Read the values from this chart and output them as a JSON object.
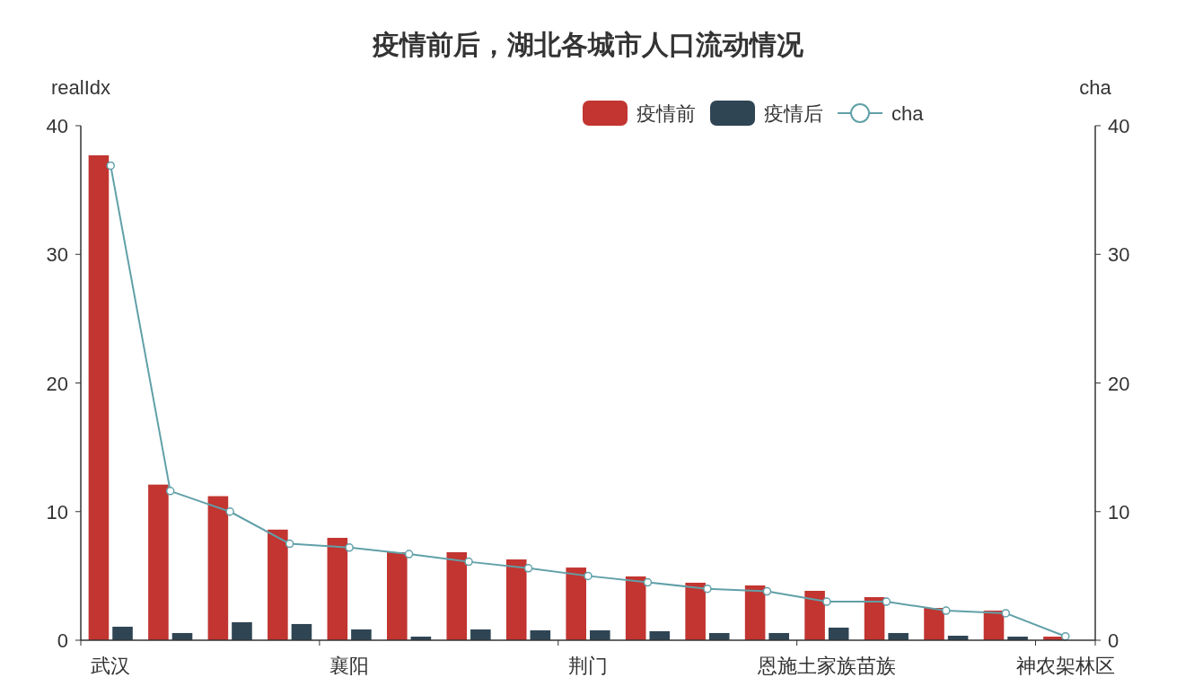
{
  "chart_data": {
    "type": "bar",
    "title": "疫情前后，湖北各城市人口流动情况",
    "ylabel": "realIdx",
    "y2label": "cha",
    "categories": [
      "武汉",
      null,
      null,
      null,
      "襄阳",
      null,
      null,
      null,
      "荆门",
      null,
      null,
      null,
      "恩施土家族苗族",
      null,
      null,
      null,
      "神农架林区"
    ],
    "series": [
      {
        "name": "疫情前",
        "color": "#c23531",
        "values": [
          37.7,
          12.1,
          11.2,
          8.6,
          7.96,
          6.84,
          6.84,
          6.28,
          5.65,
          4.96,
          4.47,
          4.26,
          3.84,
          3.35,
          2.51,
          2.3,
          0.28
        ]
      },
      {
        "name": "疫情后",
        "color": "#2f4554",
        "values": [
          1.05,
          0.56,
          1.4,
          1.26,
          0.84,
          0.28,
          0.84,
          0.77,
          0.77,
          0.7,
          0.56,
          0.56,
          0.98,
          0.56,
          0.35,
          0.28,
          null
        ]
      },
      {
        "name": "cha",
        "type": "line",
        "axis": "y2",
        "color": "#61a0a8",
        "marker": "circle",
        "values": [
          36.9,
          11.6,
          10.0,
          7.5,
          7.2,
          6.7,
          6.1,
          5.6,
          5.0,
          4.5,
          4.0,
          3.8,
          3.0,
          3.0,
          2.3,
          2.1,
          0.3
        ]
      }
    ],
    "ylim": [
      0,
      40
    ],
    "yticks": [
      0,
      10,
      20,
      30,
      40
    ],
    "y2lim": [
      0,
      40
    ],
    "y2ticks": [
      0,
      10,
      20,
      30,
      40
    ],
    "legend": "top right",
    "grid": false
  }
}
